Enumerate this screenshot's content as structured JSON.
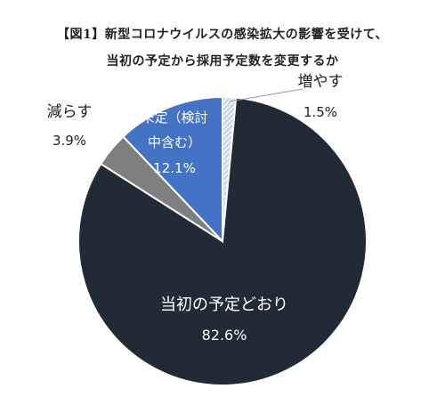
{
  "chart_data": {
    "type": "pie",
    "title_line1": "【図1】新型コロナウイルスの感染拡大の影響を受けて、",
    "title_line2": "当初の予定から採用予定数を変更するか",
    "slices": [
      {
        "label": "増やす",
        "value": 1.5,
        "display": "1.5%",
        "color": "#dce8f0"
      },
      {
        "label_line1": "未定（検討",
        "label_line2": "中含む）",
        "value": 12.1,
        "display": "12.1%",
        "color": "#4472c4"
      },
      {
        "label": "減らす",
        "value": 3.9,
        "display": "3.9%",
        "color": "#7f7f7f"
      },
      {
        "label": "当初の予定どおり",
        "value": 82.6,
        "display": "82.6%",
        "color": "#222a35"
      }
    ],
    "legend": "none"
  }
}
